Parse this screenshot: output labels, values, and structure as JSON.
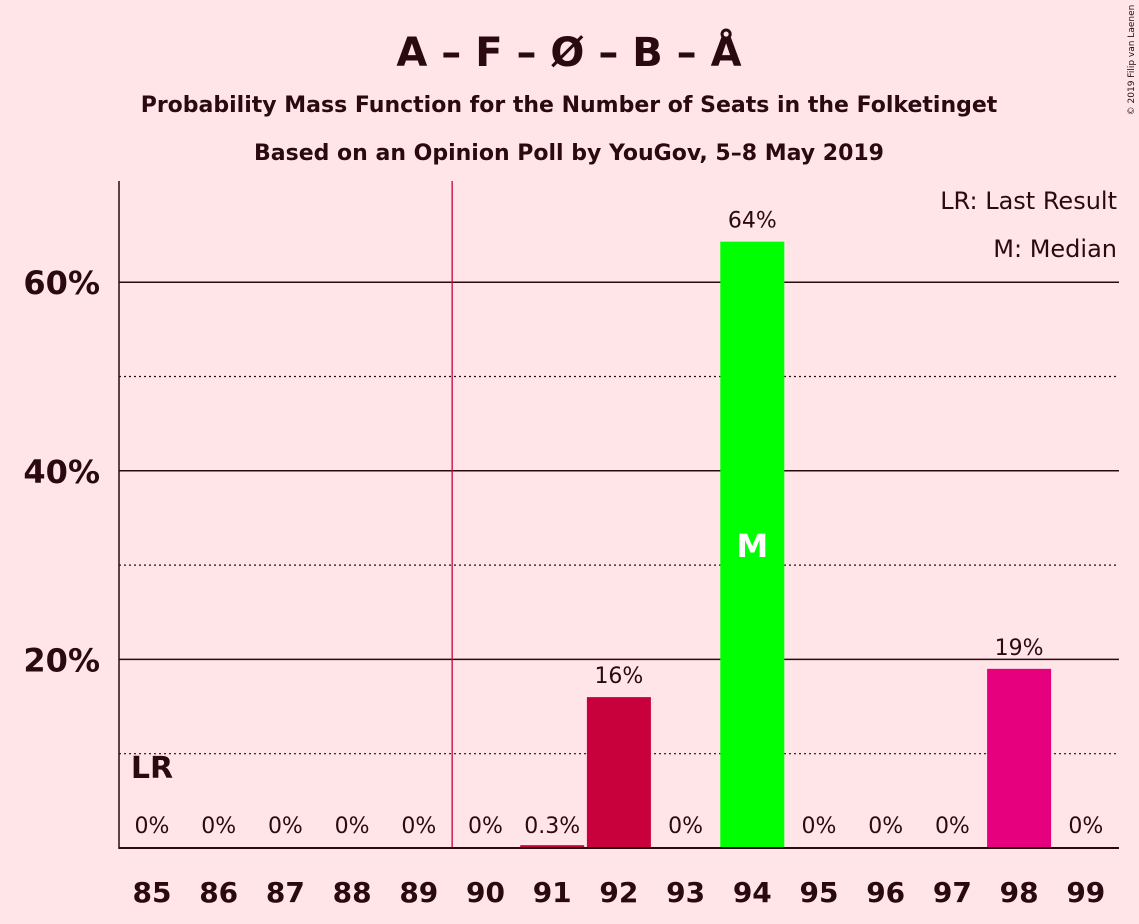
{
  "chart_data": {
    "type": "bar",
    "title": "A – F – Ø – B – Å",
    "subtitle": "Probability Mass Function for the Number of Seats in the Folketinget",
    "subtitle2": "Based on an Opinion Poll by YouGov, 5–8 May 2019",
    "copyright": "© 2019 Filip van Laenen",
    "categories": [
      "85",
      "86",
      "87",
      "88",
      "89",
      "90",
      "91",
      "92",
      "93",
      "94",
      "95",
      "96",
      "97",
      "98",
      "99"
    ],
    "values": [
      0,
      0,
      0,
      0,
      0,
      0,
      0.3,
      16,
      0,
      64.3,
      0,
      0,
      0,
      19,
      0
    ],
    "value_labels": [
      "0%",
      "0%",
      "0%",
      "0%",
      "0%",
      "0%",
      "0.3%",
      "16%",
      "0%",
      "64%",
      "0%",
      "0%",
      "0%",
      "19%",
      "0%"
    ],
    "bar_colors": [
      "#c8003c",
      "#c8003c",
      "#c8003c",
      "#c8003c",
      "#c8003c",
      "#c8003c",
      "#c8003c",
      "#c8003c",
      "#c8003c",
      "#00ff00",
      "#c8003c",
      "#c8003c",
      "#c8003c",
      "#e6007e",
      "#c8003c"
    ],
    "ylim": [
      0,
      70
    ],
    "major_ticks": [
      20,
      40,
      60
    ],
    "major_tick_labels": [
      "20%",
      "40%",
      "60%"
    ],
    "minor_gridlines": [
      10,
      30,
      50
    ],
    "majority_line_between": [
      "89",
      "90"
    ],
    "majority_line_color": "#c8003c",
    "last_result_category": "85",
    "last_result_label": "LR",
    "median_category": "94",
    "median_label": "M",
    "legend": {
      "position": "top-right",
      "last_result": "LR: Last Result",
      "median": "M: Median"
    }
  }
}
